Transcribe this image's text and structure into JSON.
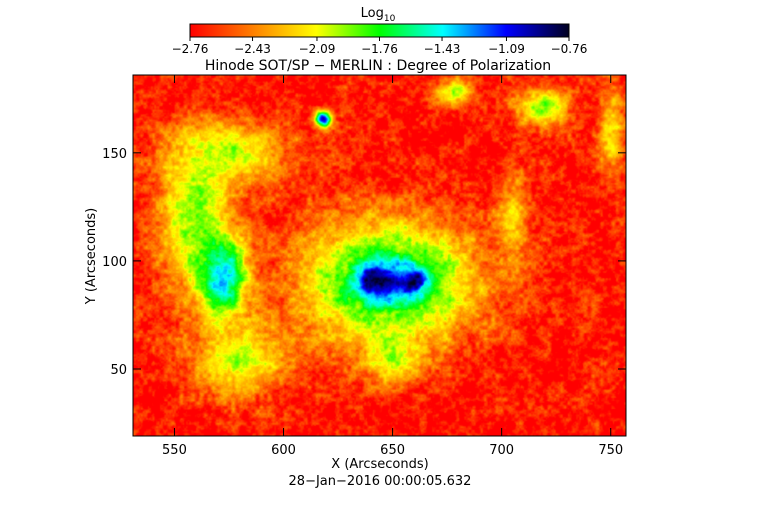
{
  "chart_data": {
    "type": "heatmap",
    "title": "Hinode SOT/SP − MERLIN : Degree of Polarization",
    "xlabel": "X (Arcseconds)",
    "ylabel": "Y (Arcseconds)",
    "timestamp": "28−Jan−2016 00:00:05.632",
    "xlim": [
      531,
      757
    ],
    "ylim": [
      19,
      186
    ],
    "x_ticks": [
      550,
      600,
      650,
      700,
      750
    ],
    "y_ticks": [
      50,
      100,
      150
    ],
    "colorbar": {
      "label_main": "Log",
      "label_sub": "10",
      "range": [
        -2.76,
        -0.76
      ],
      "tick_values": [
        -2.76,
        -2.43,
        -2.09,
        -1.76,
        -1.43,
        -1.09,
        -0.76
      ],
      "tick_labels": [
        "−2.76",
        "−2.43",
        "−2.09",
        "−1.76",
        "−1.43",
        "−1.09",
        "−0.76"
      ],
      "colors": [
        "#ff0000",
        "#ff8000",
        "#ffff00",
        "#00ff00",
        "#00ffff",
        "#0000ff",
        "#000020"
      ]
    },
    "features": [
      {
        "x": 648,
        "y": 90,
        "rx": 20,
        "ry": 13,
        "value": -0.9
      },
      {
        "x": 640,
        "y": 92,
        "rx": 9,
        "ry": 9,
        "value": -0.78
      },
      {
        "x": 660,
        "y": 91,
        "rx": 8,
        "ry": 8,
        "value": -0.78
      },
      {
        "x": 648,
        "y": 91,
        "rx": 34,
        "ry": 24,
        "value": -1.35
      },
      {
        "x": 648,
        "y": 90,
        "rx": 52,
        "ry": 38,
        "value": -1.85
      },
      {
        "x": 560,
        "y": 120,
        "rx": 22,
        "ry": 45,
        "value": -1.9
      },
      {
        "x": 572,
        "y": 92,
        "rx": 14,
        "ry": 22,
        "value": -1.3
      },
      {
        "x": 575,
        "y": 150,
        "rx": 32,
        "ry": 18,
        "value": -1.95
      },
      {
        "x": 618,
        "y": 166,
        "rx": 5,
        "ry": 5,
        "value": -1.0
      },
      {
        "x": 580,
        "y": 55,
        "rx": 28,
        "ry": 22,
        "value": -2.0
      },
      {
        "x": 650,
        "y": 58,
        "rx": 16,
        "ry": 16,
        "value": -1.95
      },
      {
        "x": 705,
        "y": 120,
        "rx": 9,
        "ry": 28,
        "value": -2.2
      },
      {
        "x": 718,
        "y": 172,
        "rx": 16,
        "ry": 12,
        "value": -1.95
      },
      {
        "x": 678,
        "y": 178,
        "rx": 12,
        "ry": 8,
        "value": -2.0
      },
      {
        "x": 750,
        "y": 160,
        "rx": 8,
        "ry": 30,
        "value": -2.2
      }
    ]
  }
}
